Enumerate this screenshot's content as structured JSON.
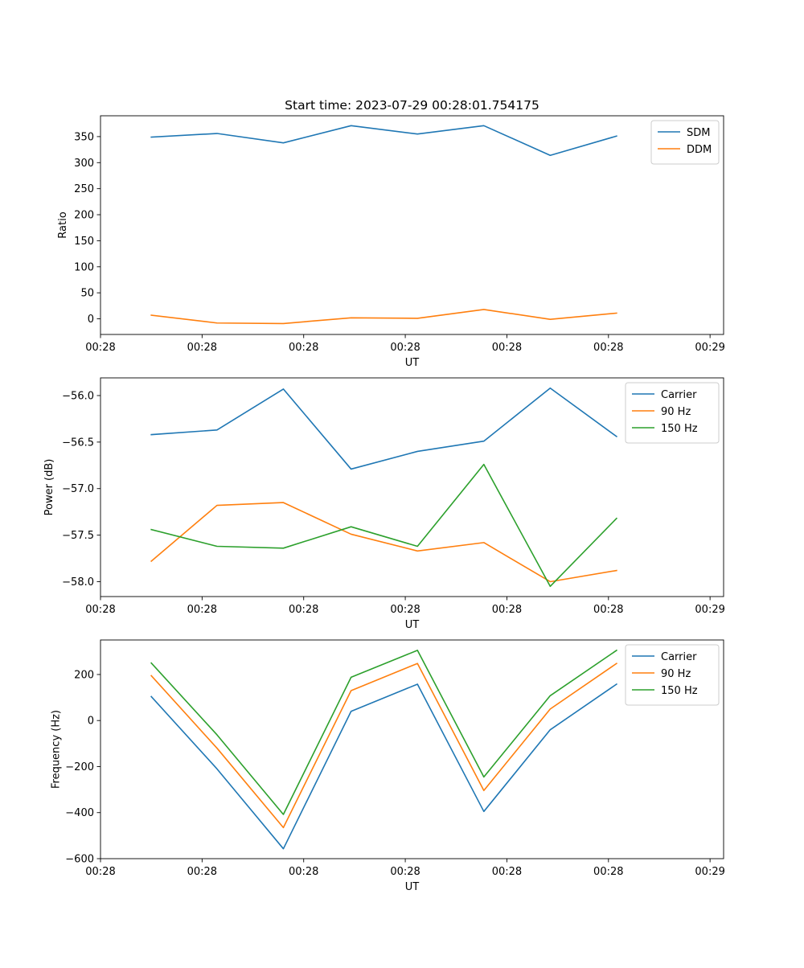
{
  "chart_data": [
    {
      "type": "line",
      "title": "Start time: 2023-07-29 00:28:01.754175",
      "xlabel": "UT",
      "ylabel": "Ratio",
      "xlim": [
        0,
        9.2
      ],
      "ylim": [
        -30,
        390
      ],
      "x_ticks": [
        0,
        1.5,
        3,
        4.5,
        6,
        7.5,
        9
      ],
      "x_tick_labels": [
        "00:28",
        "00:28",
        "00:28",
        "00:28",
        "00:28",
        "00:28",
        "00:29"
      ],
      "y_ticks": [
        0,
        50,
        100,
        150,
        200,
        250,
        300,
        350
      ],
      "y_tick_labels": [
        "0",
        "50",
        "100",
        "150",
        "200",
        "250",
        "300",
        "350"
      ],
      "x": [
        0.75,
        1.72,
        2.7,
        3.7,
        4.68,
        5.66,
        6.64,
        7.62
      ],
      "legend_position": "upper-right",
      "series": [
        {
          "name": "SDM",
          "color": "#1f77b4",
          "values": [
            349,
            356,
            338,
            371,
            355,
            371,
            314,
            351
          ]
        },
        {
          "name": "DDM",
          "color": "#ff7f0e",
          "values": [
            7,
            -8,
            -9,
            2,
            1,
            18,
            -1,
            11
          ]
        }
      ]
    },
    {
      "type": "line",
      "title": "",
      "xlabel": "UT",
      "ylabel": "Power (dB)",
      "xlim": [
        0,
        9.2
      ],
      "ylim": [
        -58.16,
        -55.81
      ],
      "x_ticks": [
        0,
        1.5,
        3,
        4.5,
        6,
        7.5,
        9
      ],
      "x_tick_labels": [
        "00:28",
        "00:28",
        "00:28",
        "00:28",
        "00:28",
        "00:28",
        "00:29"
      ],
      "y_ticks": [
        -58.0,
        -57.5,
        -57.0,
        -56.5,
        -56.0
      ],
      "y_tick_labels": [
        "−58.0",
        "−57.5",
        "−57.0",
        "−56.5",
        "−56.0"
      ],
      "x": [
        0.75,
        1.72,
        2.7,
        3.7,
        4.68,
        5.66,
        6.64,
        7.62
      ],
      "legend_position": "upper-right",
      "series": [
        {
          "name": "Carrier",
          "color": "#1f77b4",
          "values": [
            -56.42,
            -56.37,
            -55.93,
            -56.79,
            -56.6,
            -56.49,
            -55.92,
            -56.44
          ]
        },
        {
          "name": "90 Hz",
          "color": "#ff7f0e",
          "values": [
            -57.78,
            -57.18,
            -57.15,
            -57.49,
            -57.67,
            -57.58,
            -58.0,
            -57.88
          ]
        },
        {
          "name": "150 Hz",
          "color": "#2ca02c",
          "values": [
            -57.44,
            -57.62,
            -57.64,
            -57.41,
            -57.62,
            -56.74,
            -58.05,
            -57.32
          ]
        }
      ]
    },
    {
      "type": "line",
      "title": "",
      "xlabel": "UT",
      "ylabel": "Frequency (Hz)",
      "xlim": [
        0,
        9.2
      ],
      "ylim": [
        -600,
        350
      ],
      "x_ticks": [
        0,
        1.5,
        3,
        4.5,
        6,
        7.5,
        9
      ],
      "x_tick_labels": [
        "00:28",
        "00:28",
        "00:28",
        "00:28",
        "00:28",
        "00:28",
        "00:29"
      ],
      "y_ticks": [
        -600,
        -400,
        -200,
        0,
        200
      ],
      "y_tick_labels": [
        "−600",
        "−400",
        "−200",
        "0",
        "200"
      ],
      "x": [
        0.75,
        1.72,
        2.7,
        3.7,
        4.68,
        5.66,
        6.64,
        7.62
      ],
      "legend_position": "upper-right",
      "series": [
        {
          "name": "Carrier",
          "color": "#1f77b4",
          "values": [
            104,
            -210,
            -557,
            40,
            158,
            -395,
            -40,
            158
          ]
        },
        {
          "name": "90 Hz",
          "color": "#ff7f0e",
          "values": [
            195,
            -120,
            -465,
            130,
            248,
            -304,
            50,
            248
          ]
        },
        {
          "name": "150 Hz",
          "color": "#2ca02c",
          "values": [
            250,
            -62,
            -408,
            188,
            305,
            -245,
            108,
            305
          ]
        }
      ]
    }
  ]
}
